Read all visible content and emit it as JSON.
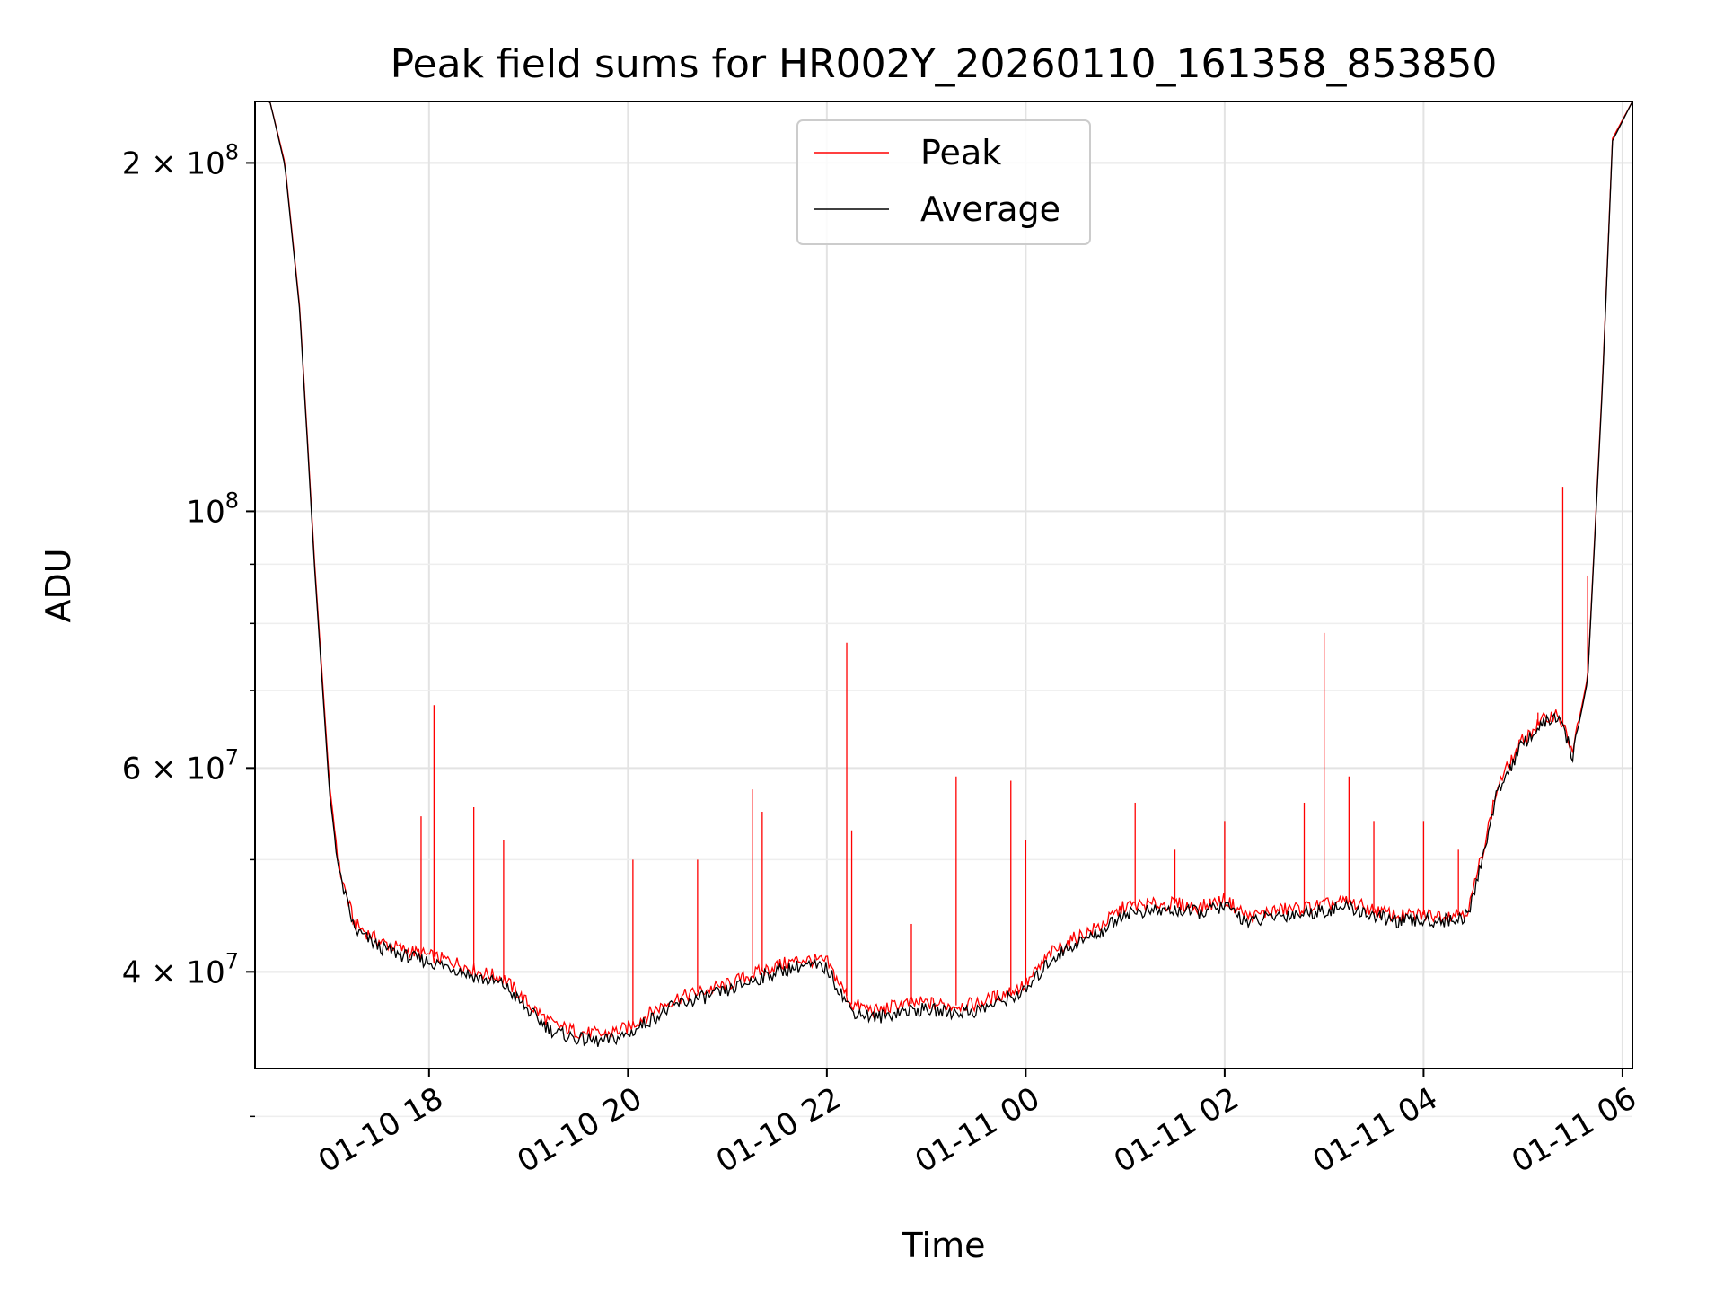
{
  "chart_data": {
    "type": "line",
    "title": "Peak field sums for HR002Y_20260110_161358_853850",
    "xlabel": "Time",
    "ylabel": "ADU",
    "yscale": "log",
    "ylim": [
      33000000,
      226000000
    ],
    "xlim_hours": [
      16.25,
      30.1
    ],
    "grid": true,
    "legend_position": "upper center",
    "x_ticks": [
      {
        "hour": 18,
        "label": "01-10 18"
      },
      {
        "hour": 20,
        "label": "01-10 20"
      },
      {
        "hour": 22,
        "label": "01-10 22"
      },
      {
        "hour": 24,
        "label": "01-11 00"
      },
      {
        "hour": 26,
        "label": "01-11 02"
      },
      {
        "hour": 28,
        "label": "01-11 04"
      },
      {
        "hour": 30,
        "label": "01-11 06"
      }
    ],
    "y_ticks": [
      {
        "value": 40000000,
        "base": "4 × 10",
        "exp": "7"
      },
      {
        "value": 60000000,
        "base": "6 × 10",
        "exp": "7"
      },
      {
        "value": 100000000,
        "base": "10",
        "exp": "8"
      },
      {
        "value": 200000000,
        "base": "2 × 10",
        "exp": "8"
      }
    ],
    "y_minor": [
      30000000,
      50000000,
      70000000,
      80000000,
      90000000
    ],
    "series": [
      {
        "name": "Peak",
        "color": "#ff0000",
        "hours": [
          16.25,
          16.4,
          16.55,
          16.7,
          16.85,
          17.0,
          17.1,
          17.25,
          17.5,
          17.75,
          18.0,
          18.25,
          18.5,
          18.75,
          19.0,
          19.25,
          19.5,
          19.75,
          20.0,
          20.25,
          20.5,
          20.75,
          21.0,
          21.25,
          21.5,
          21.75,
          22.0,
          22.25,
          22.5,
          22.75,
          23.0,
          23.25,
          23.5,
          23.75,
          24.0,
          24.25,
          24.5,
          24.75,
          25.0,
          25.25,
          25.5,
          25.75,
          26.0,
          26.25,
          26.5,
          26.75,
          27.0,
          27.25,
          27.5,
          27.75,
          28.0,
          28.25,
          28.45,
          28.55,
          28.75,
          29.0,
          29.2,
          29.35,
          29.5,
          29.65,
          29.8,
          29.9,
          30.1
        ],
        "values": [
          226000000,
          226000000,
          200000000,
          150000000,
          90000000,
          58000000,
          49000000,
          44000000,
          42500000,
          41800000,
          41300000,
          40800000,
          40000000,
          39500000,
          37500000,
          36000000,
          35500000,
          35300000,
          35800000,
          37000000,
          38000000,
          38500000,
          39000000,
          39800000,
          40500000,
          41000000,
          40800000,
          37500000,
          37000000,
          37500000,
          37600000,
          37400000,
          37500000,
          38200000,
          39000000,
          41500000,
          42800000,
          43800000,
          45600000,
          45700000,
          45800000,
          45500000,
          46200000,
          44600000,
          45200000,
          45400000,
          45700000,
          46000000,
          45200000,
          44700000,
          44800000,
          44800000,
          45200000,
          49000000,
          58000000,
          63500000,
          66000000,
          67000000,
          62000000,
          72000000,
          130000000,
          210000000,
          226000000
        ]
      },
      {
        "name": "Average",
        "color": "#000000",
        "hours": [
          16.25,
          16.4,
          16.55,
          16.7,
          16.85,
          17.0,
          17.1,
          17.25,
          17.5,
          17.75,
          18.0,
          18.25,
          18.5,
          18.75,
          19.0,
          19.25,
          19.5,
          19.75,
          20.0,
          20.25,
          20.5,
          20.75,
          21.0,
          21.25,
          21.5,
          21.75,
          22.0,
          22.25,
          22.5,
          22.75,
          23.0,
          23.25,
          23.5,
          23.75,
          24.0,
          24.25,
          24.5,
          24.75,
          25.0,
          25.25,
          25.5,
          25.75,
          26.0,
          26.25,
          26.5,
          26.75,
          27.0,
          27.25,
          27.5,
          27.75,
          28.0,
          28.25,
          28.45,
          28.55,
          28.75,
          29.0,
          29.2,
          29.35,
          29.5,
          29.65,
          29.8,
          29.9,
          30.1
        ],
        "values": [
          226000000,
          226000000,
          199000000,
          149000000,
          89000000,
          57000000,
          48500000,
          43500000,
          42000000,
          41300000,
          40800000,
          40300000,
          39500000,
          39000000,
          37000000,
          35500000,
          35000000,
          34800000,
          35300000,
          36500000,
          37500000,
          38000000,
          38500000,
          39300000,
          40000000,
          40500000,
          40300000,
          37000000,
          36500000,
          37000000,
          37100000,
          36900000,
          37000000,
          37700000,
          38500000,
          41000000,
          42300000,
          43300000,
          45000000,
          45100000,
          45200000,
          45000000,
          45600000,
          44100000,
          44700000,
          44900000,
          45200000,
          45500000,
          44700000,
          44200000,
          44300000,
          44300000,
          44700000,
          48500000,
          57500000,
          63000000,
          65500000,
          66500000,
          61500000,
          71500000,
          129000000,
          209000000,
          226000000
        ]
      }
    ],
    "spikes": [
      {
        "hour": 18.05,
        "value": 68000000
      },
      {
        "hour": 17.92,
        "value": 54500000
      },
      {
        "hour": 18.45,
        "value": 55500000
      },
      {
        "hour": 18.75,
        "value": 52000000
      },
      {
        "hour": 20.05,
        "value": 50000000
      },
      {
        "hour": 20.7,
        "value": 50000000
      },
      {
        "hour": 21.25,
        "value": 57500000
      },
      {
        "hour": 21.35,
        "value": 55000000
      },
      {
        "hour": 22.2,
        "value": 77000000
      },
      {
        "hour": 22.25,
        "value": 53000000
      },
      {
        "hour": 22.85,
        "value": 44000000
      },
      {
        "hour": 23.3,
        "value": 59000000
      },
      {
        "hour": 23.85,
        "value": 58500000
      },
      {
        "hour": 24.0,
        "value": 52000000
      },
      {
        "hour": 25.1,
        "value": 56000000
      },
      {
        "hour": 25.5,
        "value": 51000000
      },
      {
        "hour": 26.0,
        "value": 54000000
      },
      {
        "hour": 26.8,
        "value": 56000000
      },
      {
        "hour": 27.0,
        "value": 78500000
      },
      {
        "hour": 27.25,
        "value": 59000000
      },
      {
        "hour": 27.5,
        "value": 54000000
      },
      {
        "hour": 28.0,
        "value": 54000000
      },
      {
        "hour": 28.35,
        "value": 51000000
      },
      {
        "hour": 29.15,
        "value": 67000000
      },
      {
        "hour": 29.4,
        "value": 105000000
      },
      {
        "hour": 29.65,
        "value": 88000000
      }
    ]
  }
}
